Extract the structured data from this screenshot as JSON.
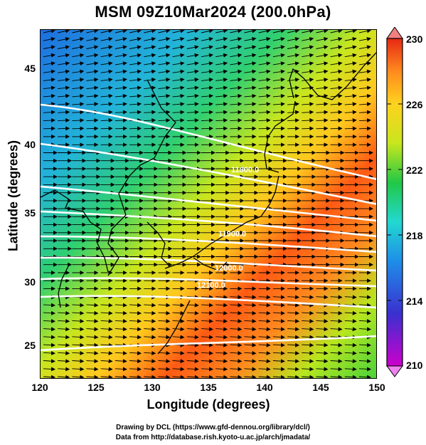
{
  "title": "MSM 09Z10Mar2024 (200.0hPa)",
  "axes": {
    "xlabel": "Longitude (degrees)",
    "ylabel": "Latitude  (degrees)",
    "xticks": [
      "120",
      "125",
      "130",
      "135",
      "140",
      "145",
      "150"
    ],
    "yticks": [
      "25",
      "30",
      "35",
      "40",
      "45"
    ],
    "xlim": [
      120,
      150
    ],
    "ylim": [
      22.4,
      47.6
    ]
  },
  "colorbar": {
    "labels": [
      "230",
      "226",
      "222",
      "218",
      "214",
      "210"
    ],
    "range": [
      210,
      230
    ],
    "colors": [
      "#cc00cc",
      "#2a2ad8",
      "#1e8ee8",
      "#22d8d0",
      "#22c846",
      "#c8e61e",
      "#ffd21e",
      "#ff8a1e",
      "#e62814"
    ]
  },
  "contours": {
    "color": "#ffffff",
    "labels": [
      "11800.0",
      "11900.0",
      "12000.0",
      "12100.0"
    ]
  },
  "footer": {
    "line1": "Drawing by DCL (https://www.gfd-dennou.org/library/dcl/)",
    "line2": "Data from http://database.rish.kyoto-u.ac.jp/arch/jmadata/"
  }
}
